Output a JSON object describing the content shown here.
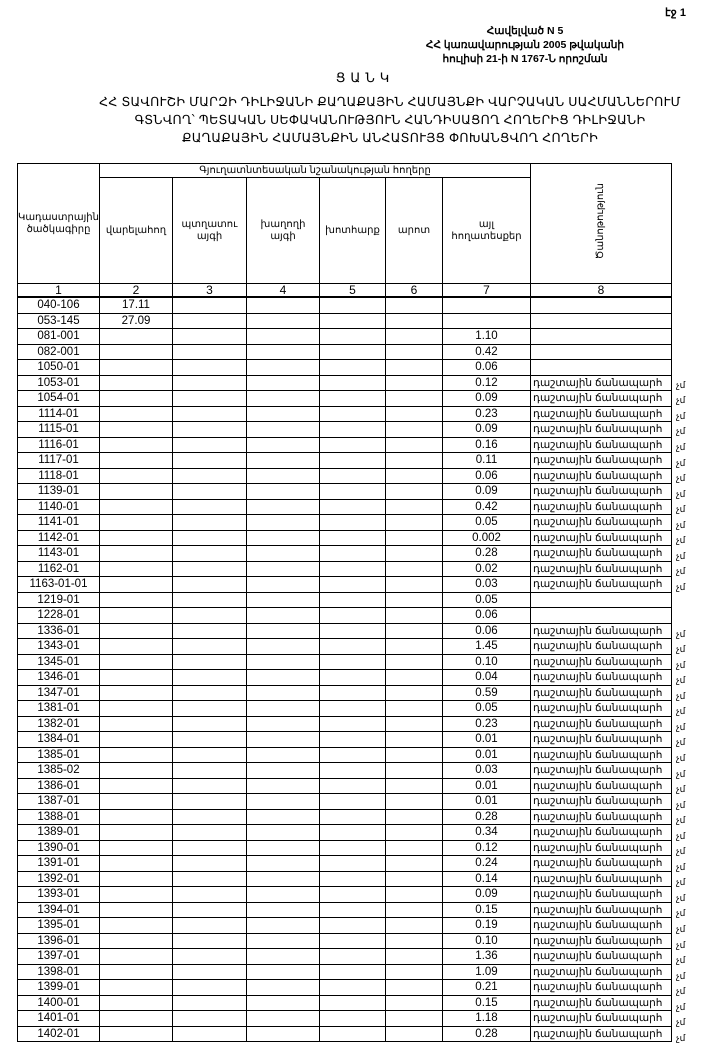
{
  "page_number": "էջ 1",
  "annex": {
    "line1": "Հավելված N 5",
    "line2": "ՀՀ կառավարության 2005 թվականի",
    "line3": "հուլիսի 21-ի N 1767-Ն որոշման"
  },
  "list_title": "ՑԱՆԿ",
  "main_title": {
    "line1": "ՀՀ ՏԱՎՈՒՇԻ ՄԱՐԶԻ ԴԻԼԻՋԱՆԻ ՔԱՂԱՔԱՅԻՆ ՀԱՄԱՅՆՔԻ ՎԱՐՉԱԿԱՆ ՍԱՀՄԱՆՆԵՐՈՒՄ",
    "line2": "ԳՏՆՎՈՂ՝ ՊԵՏԱԿԱՆ ՍԵՓԱԿԱՆՈՒԹՅՈՒՆ ՀԱՆԴԻՍԱՑՈՂ ՀՈՂԵՐԻՑ ԴԻԼԻՋԱՆԻ",
    "line3": "ՔԱՂԱՔԱՅԻՆ ՀԱՄԱՅՆՔԻՆ ԱՆՀԱՏՈՒՅՑ ՓՈԽԱՆՑՎՈՂ ՀՈՂԵՐԻ"
  },
  "table": {
    "col_code": "Կադաստրային ծածկագիրը",
    "group_header": "Գյուղատնտեսական նշանակության հողերը",
    "col_arable": "վարելահող",
    "col_orchard": "պտղատու այգի",
    "col_vineyard": "խաղողի այգի",
    "col_hayfield": "խոտհարք",
    "col_pasture": "արոտ",
    "col_other": "այլ հողատեսքեր",
    "col_note": "Ծանոթություն",
    "column_numbers": [
      "1",
      "2",
      "3",
      "4",
      "5",
      "6",
      "7",
      "8"
    ],
    "rows": [
      {
        "code": "040-106",
        "arable": "17.11",
        "other": "",
        "note": ""
      },
      {
        "code": "053-145",
        "arable": "27.09",
        "other": "",
        "note": ""
      },
      {
        "code": "081-001",
        "arable": "",
        "other": "1.10",
        "note": ""
      },
      {
        "code": "082-001",
        "arable": "",
        "other": "0.42",
        "note": ""
      },
      {
        "code": "1050-01",
        "arable": "",
        "other": "0.06",
        "note": ""
      },
      {
        "code": "1053-01",
        "arable": "",
        "other": "0.12",
        "note": "դաշտային ճանապարհ",
        "mark": "չմ"
      },
      {
        "code": "1054-01",
        "arable": "",
        "other": "0.09",
        "note": "դաշտային ճանապարհ",
        "mark": "չմ"
      },
      {
        "code": "1114-01",
        "arable": "",
        "other": "0.23",
        "note": "դաշտային ճանապարհ",
        "mark": "չմ"
      },
      {
        "code": "1115-01",
        "arable": "",
        "other": "0.09",
        "note": "դաշտային ճանապարհ",
        "mark": "չմ"
      },
      {
        "code": "1116-01",
        "arable": "",
        "other": "0.16",
        "note": "դաշտային ճանապարհ",
        "mark": "չմ"
      },
      {
        "code": "1117-01",
        "arable": "",
        "other": "0.11",
        "note": "դաշտային ճանապարհ",
        "mark": "չմ"
      },
      {
        "code": "1118-01",
        "arable": "",
        "other": "0.06",
        "note": "դաշտային ճանապարհ",
        "mark": "չմ"
      },
      {
        "code": "1139-01",
        "arable": "",
        "other": "0.09",
        "note": "դաշտային ճանապարհ",
        "mark": "չմ"
      },
      {
        "code": "1140-01",
        "arable": "",
        "other": "0.42",
        "note": "դաշտային ճանապարհ",
        "mark": "չմ"
      },
      {
        "code": "1141-01",
        "arable": "",
        "other": "0.05",
        "note": "դաշտային ճանապարհ",
        "mark": "չմ"
      },
      {
        "code": "1142-01",
        "arable": "",
        "other": "0.002",
        "note": "դաշտային ճանապարհ",
        "mark": "չմ"
      },
      {
        "code": "1143-01",
        "arable": "",
        "other": "0.28",
        "note": "դաշտային ճանապարհ",
        "mark": "չմ"
      },
      {
        "code": "1162-01",
        "arable": "",
        "other": "0.02",
        "note": "դաշտային ճանապարհ",
        "mark": "չմ"
      },
      {
        "code": "1163-01-01",
        "arable": "",
        "other": "0.03",
        "note": "դաշտային ճանապարհ",
        "mark": "չմ"
      },
      {
        "code": "1219-01",
        "arable": "",
        "other": "0.05",
        "note": ""
      },
      {
        "code": "1228-01",
        "arable": "",
        "other": "0.06",
        "note": ""
      },
      {
        "code": "1336-01",
        "arable": "",
        "other": "0.06",
        "note": "դաշտային ճանապարհ",
        "mark": "չմ"
      },
      {
        "code": "1343-01",
        "arable": "",
        "other": "1.45",
        "note": "դաշտային ճանապարհ",
        "mark": "չմ"
      },
      {
        "code": "1345-01",
        "arable": "",
        "other": "0.10",
        "note": "դաշտային ճանապարհ",
        "mark": "չմ"
      },
      {
        "code": "1346-01",
        "arable": "",
        "other": "0.04",
        "note": "դաշտային ճանապարհ",
        "mark": "չմ"
      },
      {
        "code": "1347-01",
        "arable": "",
        "other": "0.59",
        "note": "դաշտային ճանապարհ",
        "mark": "չմ"
      },
      {
        "code": "1381-01",
        "arable": "",
        "other": "0.05",
        "note": "դաշտային ճանապարհ",
        "mark": "չմ"
      },
      {
        "code": "1382-01",
        "arable": "",
        "other": "0.23",
        "note": "դաշտային ճանապարհ",
        "mark": "չմ"
      },
      {
        "code": "1384-01",
        "arable": "",
        "other": "0.01",
        "note": "դաշտային ճանապարհ",
        "mark": "չմ"
      },
      {
        "code": "1385-01",
        "arable": "",
        "other": "0.01",
        "note": "դաշտային ճանապարհ",
        "mark": "չմ"
      },
      {
        "code": "1385-02",
        "arable": "",
        "other": "0.03",
        "note": "դաշտային ճանապարհ",
        "mark": "չմ"
      },
      {
        "code": "1386-01",
        "arable": "",
        "other": "0.01",
        "note": "դաշտային ճանապարհ",
        "mark": "չմ"
      },
      {
        "code": "1387-01",
        "arable": "",
        "other": "0.01",
        "note": "դաշտային ճանապարհ",
        "mark": "չմ"
      },
      {
        "code": "1388-01",
        "arable": "",
        "other": "0.28",
        "note": "դաշտային ճանապարհ",
        "mark": "չմ"
      },
      {
        "code": "1389-01",
        "arable": "",
        "other": "0.34",
        "note": "դաշտային ճանապարհ",
        "mark": "չմ"
      },
      {
        "code": "1390-01",
        "arable": "",
        "other": "0.12",
        "note": "դաշտային ճանապարհ",
        "mark": "չմ"
      },
      {
        "code": "1391-01",
        "arable": "",
        "other": "0.24",
        "note": "դաշտային ճանապարհ",
        "mark": "չմ"
      },
      {
        "code": "1392-01",
        "arable": "",
        "other": "0.14",
        "note": "դաշտային ճանապարհ",
        "mark": "չմ"
      },
      {
        "code": "1393-01",
        "arable": "",
        "other": "0.09",
        "note": "դաշտային ճանապարհ",
        "mark": "չմ"
      },
      {
        "code": "1394-01",
        "arable": "",
        "other": "0.15",
        "note": "դաշտային ճանապարհ",
        "mark": "չմ"
      },
      {
        "code": "1395-01",
        "arable": "",
        "other": "0.19",
        "note": "դաշտային ճանապարհ",
        "mark": "չմ"
      },
      {
        "code": "1396-01",
        "arable": "",
        "other": "0.10",
        "note": "դաշտային ճանապարհ",
        "mark": "չմ"
      },
      {
        "code": "1397-01",
        "arable": "",
        "other": "1.36",
        "note": "դաշտային ճանապարհ",
        "mark": "չմ"
      },
      {
        "code": "1398-01",
        "arable": "",
        "other": "1.09",
        "note": "դաշտային ճանապարհ",
        "mark": "չմ"
      },
      {
        "code": "1399-01",
        "arable": "",
        "other": "0.21",
        "note": "դաշտային ճանապարհ",
        "mark": "չմ"
      },
      {
        "code": "1400-01",
        "arable": "",
        "other": "0.15",
        "note": "դաշտային ճանապարհ",
        "mark": "չմ"
      },
      {
        "code": "1401-01",
        "arable": "",
        "other": "1.18",
        "note": "դաշտային ճանապարհ",
        "mark": "չմ"
      },
      {
        "code": "1402-01",
        "arable": "",
        "other": "0.28",
        "note": "դաշտային ճանապարհ",
        "mark": "չմ"
      }
    ]
  }
}
